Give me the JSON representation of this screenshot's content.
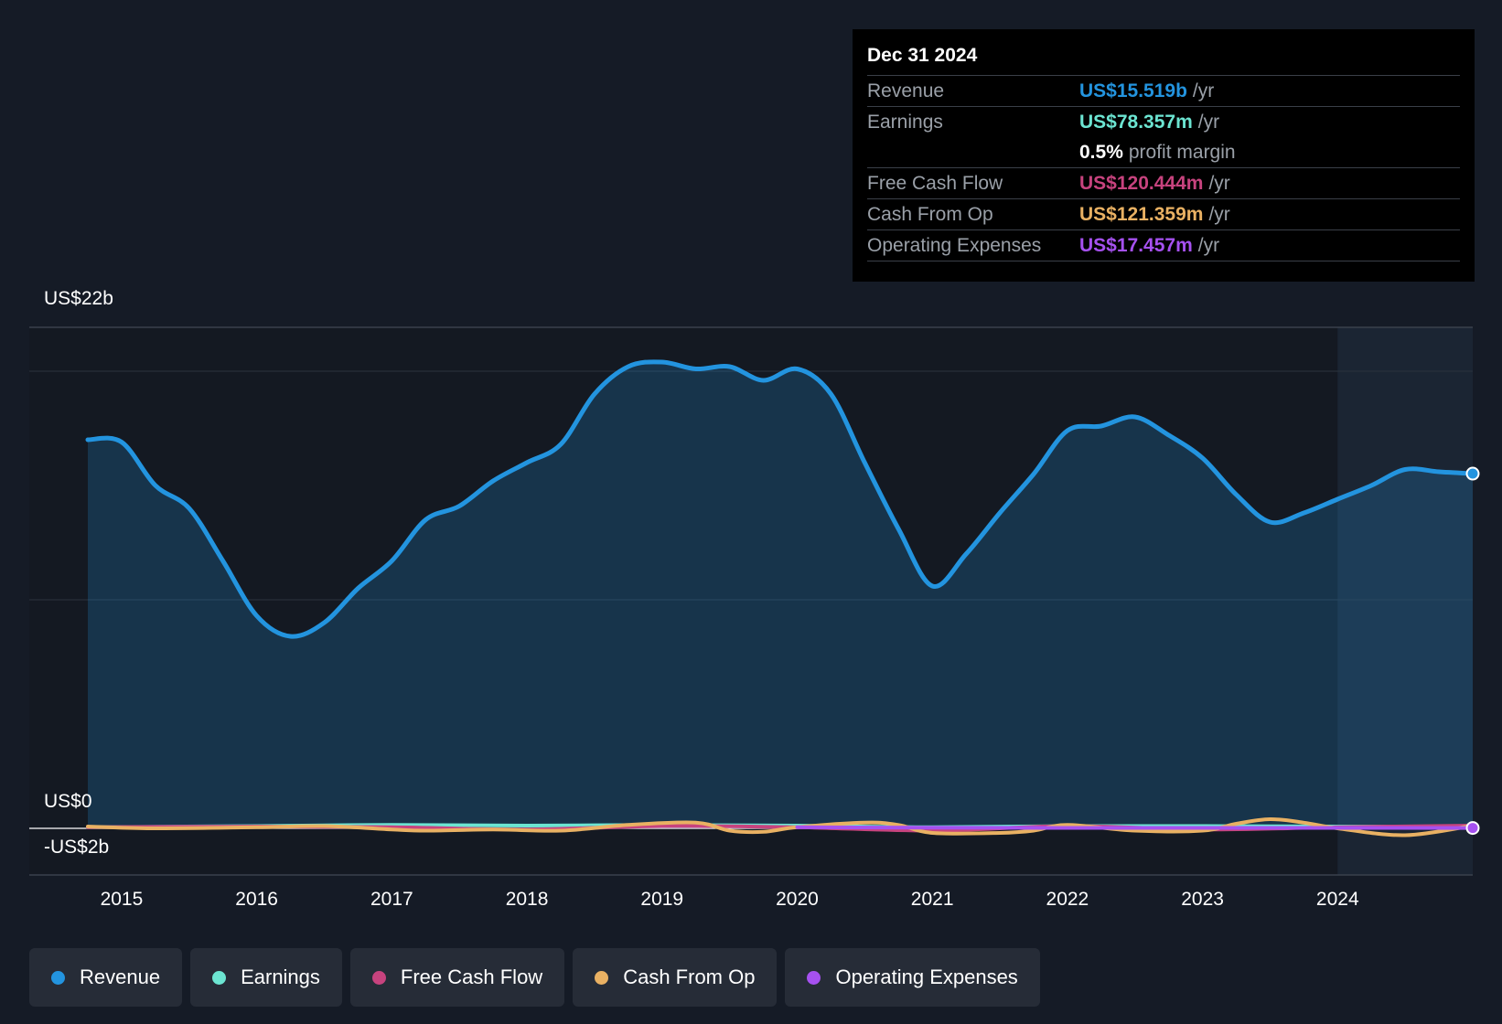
{
  "tooltip": {
    "date": "Dec 31 2024",
    "rows": [
      {
        "label": "Revenue",
        "value": "US$15.519b",
        "unit": "/yr",
        "color": "#2394df"
      },
      {
        "label": "Earnings",
        "value": "US$78.357m",
        "unit": "/yr",
        "color": "#6ce5d2"
      },
      {
        "label": "",
        "value": "0.5%",
        "unit": "profit margin",
        "color": "#ffffff"
      },
      {
        "label": "Free Cash Flow",
        "value": "US$120.444m",
        "unit": "/yr",
        "color": "#c7437e"
      },
      {
        "label": "Cash From Op",
        "value": "US$121.359m",
        "unit": "/yr",
        "color": "#e9b163"
      },
      {
        "label": "Operating Expenses",
        "value": "US$17.457m",
        "unit": "/yr",
        "color": "#a651f0"
      }
    ]
  },
  "legend": [
    {
      "label": "Revenue",
      "color": "#2394df"
    },
    {
      "label": "Earnings",
      "color": "#6ce5d2"
    },
    {
      "label": "Free Cash Flow",
      "color": "#c7437e"
    },
    {
      "label": "Cash From Op",
      "color": "#e9b163"
    },
    {
      "label": "Operating Expenses",
      "color": "#a651f0"
    }
  ],
  "chart_data": {
    "type": "area",
    "ylim": [
      -2,
      22
    ],
    "y_tick_labels": [
      {
        "value": 22,
        "label": "US$22b"
      },
      {
        "value": 0,
        "label": "US$0"
      },
      {
        "value": -2,
        "label": "-US$2b"
      }
    ],
    "xlim": [
      2014.75,
      2025.0
    ],
    "x_ticks": [
      2015,
      2016,
      2017,
      2018,
      2019,
      2020,
      2021,
      2022,
      2023,
      2024
    ],
    "x_tick_labels": [
      "2015",
      "2016",
      "2017",
      "2018",
      "2019",
      "2020",
      "2021",
      "2022",
      "2023",
      "2024"
    ],
    "gridlines": [
      20,
      10
    ],
    "forecast_shade_start": 2024.0,
    "series": [
      {
        "name": "Revenue",
        "color": "#2394df",
        "fill": true,
        "x": [
          2014.75,
          2015.0,
          2015.25,
          2015.5,
          2015.75,
          2016.0,
          2016.25,
          2016.5,
          2016.75,
          2017.0,
          2017.25,
          2017.5,
          2017.75,
          2018.0,
          2018.25,
          2018.5,
          2018.75,
          2019.0,
          2019.25,
          2019.5,
          2019.75,
          2020.0,
          2020.25,
          2020.5,
          2020.75,
          2021.0,
          2021.25,
          2021.5,
          2021.75,
          2022.0,
          2022.25,
          2022.5,
          2022.75,
          2023.0,
          2023.25,
          2023.5,
          2023.75,
          2024.0,
          2024.25,
          2024.5,
          2024.75,
          2025.0
        ],
        "values": [
          17.0,
          16.9,
          15.0,
          14.0,
          11.7,
          9.3,
          8.4,
          9.0,
          10.5,
          11.7,
          13.5,
          14.1,
          15.2,
          16.0,
          16.8,
          19.0,
          20.2,
          20.4,
          20.1,
          20.2,
          19.6,
          20.1,
          19.0,
          16.0,
          13.1,
          10.6,
          12.0,
          13.8,
          15.5,
          17.4,
          17.6,
          18.0,
          17.2,
          16.2,
          14.6,
          13.4,
          13.8,
          14.4,
          15.0,
          15.7,
          15.6,
          15.519
        ]
      },
      {
        "name": "Earnings",
        "color": "#6ce5d2",
        "fill": false,
        "x": [
          2014.75,
          2016.0,
          2017.0,
          2018.0,
          2019.0,
          2020.0,
          2021.0,
          2022.0,
          2023.0,
          2024.0,
          2025.0
        ],
        "values": [
          0.05,
          0.1,
          0.15,
          0.12,
          0.15,
          0.12,
          0.05,
          0.1,
          0.1,
          0.08,
          0.078
        ]
      },
      {
        "name": "Free Cash Flow",
        "color": "#c7437e",
        "fill": false,
        "x": [
          2014.75,
          2016.0,
          2017.0,
          2018.0,
          2019.0,
          2020.0,
          2021.0,
          2022.0,
          2023.0,
          2024.0,
          2025.0
        ],
        "values": [
          0.05,
          0.08,
          0.05,
          -0.05,
          0.1,
          0.05,
          -0.1,
          0.1,
          -0.05,
          0.05,
          0.12
        ]
      },
      {
        "name": "Cash From Op",
        "color": "#e9b163",
        "fill": false,
        "x": [
          2014.75,
          2015.25,
          2016.0,
          2016.5,
          2017.0,
          2017.25,
          2017.75,
          2018.25,
          2018.75,
          2019.25,
          2019.5,
          2019.75,
          2020.0,
          2020.5,
          2020.75,
          2021.0,
          2021.5,
          2021.75,
          2022.0,
          2022.5,
          2023.0,
          2023.25,
          2023.5,
          2023.75,
          2024.0,
          2024.5,
          2025.0
        ],
        "values": [
          0.08,
          0.0,
          0.05,
          0.1,
          -0.05,
          -0.1,
          -0.05,
          -0.1,
          0.15,
          0.25,
          -0.1,
          -0.15,
          0.05,
          0.25,
          0.15,
          -0.2,
          -0.2,
          -0.1,
          0.15,
          -0.1,
          -0.1,
          0.2,
          0.4,
          0.25,
          0.0,
          -0.3,
          0.12
        ]
      },
      {
        "name": "Operating Expenses",
        "color": "#a651f0",
        "fill": false,
        "x": [
          2020.0,
          2021.0,
          2022.0,
          2023.0,
          2024.0,
          2025.0
        ],
        "values": [
          0.05,
          0.03,
          0.02,
          0.02,
          0.02,
          0.017
        ]
      }
    ]
  }
}
